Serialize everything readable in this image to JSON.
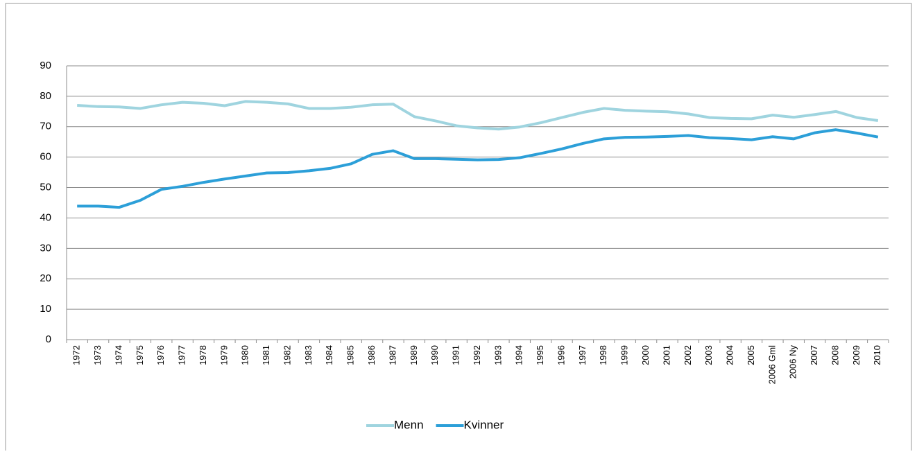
{
  "chart_data": {
    "type": "line",
    "categories": [
      "1972",
      "1973",
      "1974",
      "1975",
      "1976",
      "1977",
      "1978",
      "1979",
      "1980",
      "1981",
      "1982",
      "1983",
      "1984",
      "1985",
      "1986",
      "1987",
      "1989",
      "1990",
      "1991",
      "1992",
      "1993",
      "1994",
      "1995",
      "1996",
      "1997",
      "1998",
      "1999",
      "2000",
      "2001",
      "2002",
      "2003",
      "2004",
      "2005",
      "2006 Gml",
      "2006 Ny",
      "2007",
      "2008",
      "2009",
      "2010"
    ],
    "series": [
      {
        "name": "Menn",
        "color": "#9fd4df",
        "values": [
          77,
          76.6,
          76.5,
          76,
          77.2,
          78,
          77.7,
          76.9,
          78.3,
          78,
          77.5,
          76,
          76,
          76.4,
          77.2,
          77.4,
          73.3,
          71.9,
          70.3,
          69.6,
          69.2,
          69.9,
          71.3,
          73,
          74.7,
          76,
          75.4,
          75.1,
          74.9,
          74.2,
          73,
          72.7,
          72.6,
          73.8,
          73.1,
          74,
          75,
          73,
          72
        ]
      },
      {
        "name": "Kvinner",
        "color": "#2c9fd8",
        "values": [
          43.9,
          43.9,
          43.5,
          45.8,
          49.4,
          50.4,
          51.7,
          52.8,
          53.8,
          54.8,
          54.9,
          55.5,
          56.3,
          57.8,
          60.9,
          62.1,
          59.5,
          59.5,
          59.3,
          59.1,
          59.2,
          59.8,
          61.2,
          62.7,
          64.5,
          66,
          66.5,
          66.6,
          66.8,
          67.1,
          66.4,
          66.1,
          65.7,
          66.7,
          66,
          68,
          69,
          67.9,
          66.6
        ]
      }
    ],
    "ylim": [
      0,
      90
    ],
    "yticks": [
      0,
      10,
      20,
      30,
      40,
      50,
      60,
      70,
      80,
      90
    ],
    "grid": true,
    "legend": "bottom"
  }
}
